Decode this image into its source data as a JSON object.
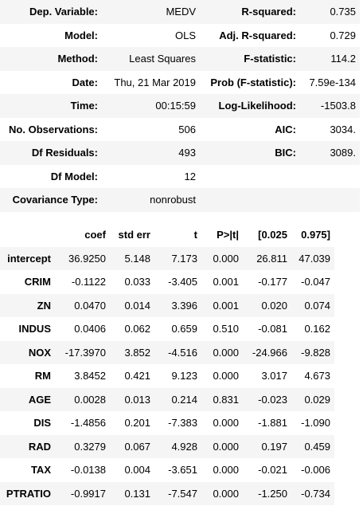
{
  "summary": {
    "rows": [
      [
        "Dep. Variable:",
        "MEDV",
        "R-squared:",
        "0.735"
      ],
      [
        "Model:",
        "OLS",
        "Adj. R-squared:",
        "0.729"
      ],
      [
        "Method:",
        "Least Squares",
        "F-statistic:",
        "114.2"
      ],
      [
        "Date:",
        "Thu, 21 Mar 2019",
        "Prob (F-statistic):",
        "7.59e-134"
      ],
      [
        "Time:",
        "00:15:59",
        "Log-Likelihood:",
        "-1503.8"
      ],
      [
        "No. Observations:",
        "506",
        "AIC:",
        "3034."
      ],
      [
        "Df Residuals:",
        "493",
        "BIC:",
        "3089."
      ],
      [
        "Df Model:",
        "12"
      ],
      [
        "Covariance Type:",
        "nonrobust"
      ]
    ]
  },
  "coefficients": {
    "header": [
      "coef",
      "std err",
      "t",
      "P>|t|",
      "[0.025",
      "0.975]"
    ],
    "rows": [
      [
        "intercept",
        "36.9250",
        "5.148",
        "7.173",
        "0.000",
        "26.811",
        "47.039"
      ],
      [
        "CRIM",
        "-0.1122",
        "0.033",
        "-3.405",
        "0.001",
        "-0.177",
        "-0.047"
      ],
      [
        "ZN",
        "0.0470",
        "0.014",
        "3.396",
        "0.001",
        "0.020",
        "0.074"
      ],
      [
        "INDUS",
        "0.0406",
        "0.062",
        "0.659",
        "0.510",
        "-0.081",
        "0.162"
      ],
      [
        "NOX",
        "-17.3970",
        "3.852",
        "-4.516",
        "0.000",
        "-24.966",
        "-9.828"
      ],
      [
        "RM",
        "3.8452",
        "0.421",
        "9.123",
        "0.000",
        "3.017",
        "4.673"
      ],
      [
        "AGE",
        "0.0028",
        "0.013",
        "0.214",
        "0.831",
        "-0.023",
        "0.029"
      ],
      [
        "DIS",
        "-1.4856",
        "0.201",
        "-7.383",
        "0.000",
        "-1.881",
        "-1.090"
      ],
      [
        "RAD",
        "0.3279",
        "0.067",
        "4.928",
        "0.000",
        "0.197",
        "0.459"
      ],
      [
        "TAX",
        "-0.0138",
        "0.004",
        "-3.651",
        "0.000",
        "-0.021",
        "-0.006"
      ],
      [
        "PTRATIO",
        "-0.9917",
        "0.131",
        "-7.547",
        "0.000",
        "-1.250",
        "-0.734"
      ]
    ]
  }
}
